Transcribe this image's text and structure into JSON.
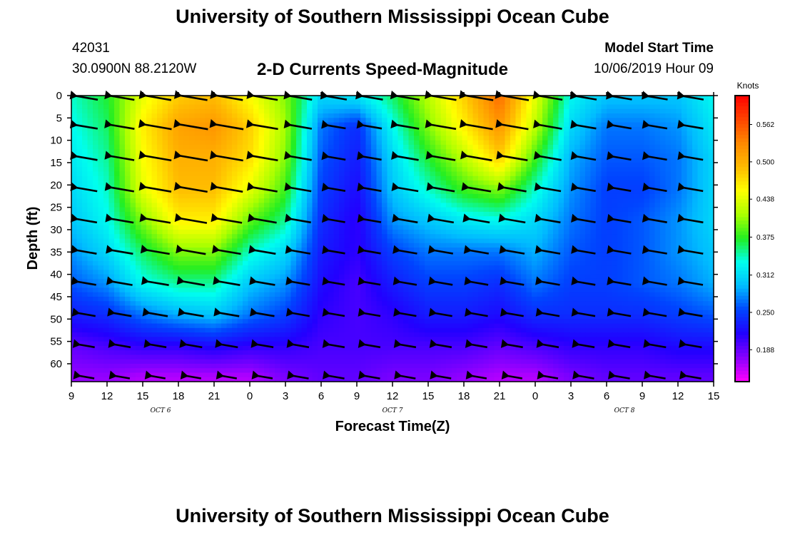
{
  "header": {
    "title": "University of Southern Mississippi Ocean Cube",
    "station_id": "42031",
    "station_coords": "30.0900N 88.2120W",
    "subtitle": "2-D Currents Speed-Magnitude",
    "model_start_label": "Model Start Time",
    "model_start_value": "10/06/2019 Hour 09"
  },
  "footer": {
    "title": "University of Southern Mississippi Ocean Cube"
  },
  "chart_data": {
    "type": "heatmap",
    "title": "2-D Currents Speed-Magnitude",
    "xlabel": "Forecast Time(Z)",
    "ylabel": "Depth (ft)",
    "x_tick_labels": [
      "9",
      "12",
      "15",
      "18",
      "21",
      "0",
      "3",
      "6",
      "9",
      "12",
      "15",
      "18",
      "21",
      "0",
      "3",
      "6",
      "9",
      "12",
      "15"
    ],
    "x_hours": [
      0,
      54
    ],
    "date_labels": [
      {
        "label": "OCT 6",
        "hour": 7.5
      },
      {
        "label": "OCT 7",
        "hour": 27
      },
      {
        "label": "OCT 8",
        "hour": 46.5
      }
    ],
    "y_ticks": [
      0,
      5,
      10,
      15,
      20,
      25,
      30,
      35,
      40,
      45,
      50,
      55,
      60
    ],
    "ylim": [
      0,
      64
    ],
    "y_inverted": true,
    "colorbar": {
      "unit": "Knots",
      "tick_values": [
        0.188,
        0.25,
        0.312,
        0.375,
        0.438,
        0.5,
        0.562
      ],
      "tick_labels": [
        "0.188",
        "0.250",
        "0.312",
        "0.375",
        "0.438",
        "0.500",
        "0.562"
      ],
      "range": [
        0.135,
        0.61
      ],
      "colors": [
        "#ff00ff",
        "#8800ff",
        "#2200ff",
        "#0044ff",
        "#00bbff",
        "#00ffee",
        "#22ee22",
        "#aaff00",
        "#ffff00",
        "#ffbb00",
        "#ff8800",
        "#ff4400",
        "#ff0000"
      ]
    },
    "grid_times": [
      0,
      3,
      6,
      9,
      12,
      15,
      18,
      21,
      24,
      27,
      30,
      33,
      36,
      39,
      42,
      45,
      48,
      51,
      54
    ],
    "grid_depths": [
      0,
      7,
      14,
      21,
      28,
      35,
      42,
      49,
      56,
      63
    ],
    "speed_knots": [
      [
        0.34,
        0.37,
        0.44,
        0.48,
        0.49,
        0.45,
        0.4,
        0.31,
        0.32,
        0.36,
        0.42,
        0.48,
        0.55,
        0.44,
        0.33,
        0.3,
        0.3,
        0.3,
        0.33
      ],
      [
        0.33,
        0.36,
        0.46,
        0.51,
        0.52,
        0.48,
        0.41,
        0.27,
        0.24,
        0.33,
        0.4,
        0.46,
        0.52,
        0.42,
        0.31,
        0.27,
        0.27,
        0.28,
        0.32
      ],
      [
        0.32,
        0.35,
        0.45,
        0.5,
        0.5,
        0.47,
        0.4,
        0.26,
        0.23,
        0.31,
        0.37,
        0.42,
        0.48,
        0.38,
        0.29,
        0.26,
        0.26,
        0.27,
        0.31
      ],
      [
        0.31,
        0.34,
        0.44,
        0.49,
        0.49,
        0.44,
        0.38,
        0.25,
        0.22,
        0.3,
        0.34,
        0.38,
        0.4,
        0.34,
        0.28,
        0.25,
        0.25,
        0.27,
        0.31
      ],
      [
        0.3,
        0.33,
        0.4,
        0.46,
        0.46,
        0.39,
        0.35,
        0.24,
        0.21,
        0.28,
        0.3,
        0.32,
        0.33,
        0.31,
        0.27,
        0.25,
        0.26,
        0.28,
        0.31
      ],
      [
        0.28,
        0.31,
        0.36,
        0.4,
        0.4,
        0.34,
        0.31,
        0.23,
        0.21,
        0.25,
        0.27,
        0.27,
        0.27,
        0.29,
        0.26,
        0.25,
        0.26,
        0.28,
        0.3
      ],
      [
        0.26,
        0.28,
        0.33,
        0.35,
        0.35,
        0.3,
        0.28,
        0.22,
        0.2,
        0.23,
        0.25,
        0.25,
        0.24,
        0.27,
        0.25,
        0.25,
        0.26,
        0.27,
        0.29
      ],
      [
        0.23,
        0.24,
        0.27,
        0.29,
        0.3,
        0.27,
        0.25,
        0.21,
        0.2,
        0.21,
        0.23,
        0.23,
        0.22,
        0.24,
        0.24,
        0.24,
        0.24,
        0.25,
        0.26
      ],
      [
        0.19,
        0.2,
        0.21,
        0.21,
        0.22,
        0.21,
        0.21,
        0.2,
        0.2,
        0.2,
        0.2,
        0.2,
        0.19,
        0.2,
        0.21,
        0.21,
        0.21,
        0.22,
        0.22
      ],
      [
        0.17,
        0.17,
        0.16,
        0.16,
        0.16,
        0.16,
        0.18,
        0.19,
        0.19,
        0.18,
        0.18,
        0.17,
        0.16,
        0.16,
        0.18,
        0.19,
        0.19,
        0.19,
        0.19
      ]
    ],
    "arrows": {
      "times": [
        1.3,
        4.3,
        7.3,
        10.3,
        13.3,
        16.3,
        19.3,
        22.3,
        25.3,
        28.3,
        31.3,
        34.3,
        37.3,
        40.3,
        43.3,
        46.3,
        49.3,
        52.3
      ],
      "depths": [
        0.5,
        7,
        14,
        21,
        28,
        35,
        42,
        49,
        56,
        63
      ],
      "direction": "toward west (left), slight northward tilt"
    }
  }
}
